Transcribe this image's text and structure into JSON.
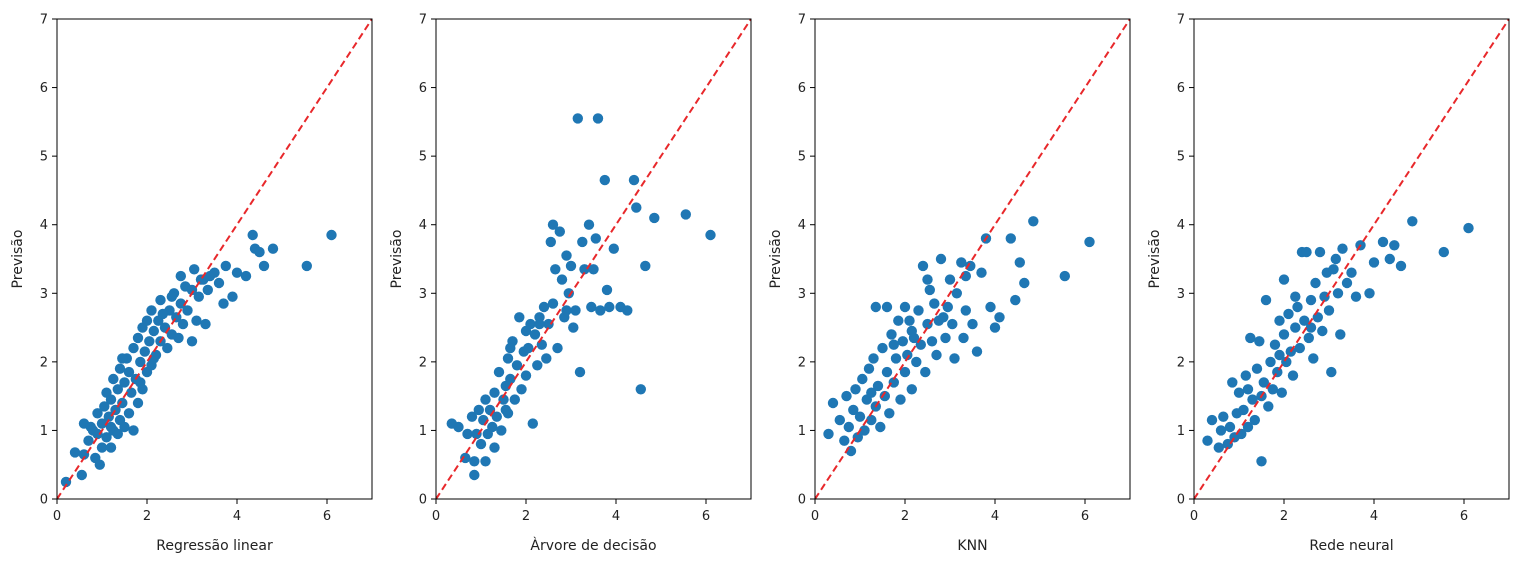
{
  "chart_data": [
    {
      "type": "scatter",
      "xlabel": "Regressão linear",
      "ylabel": "Previsão",
      "xlim": [
        0,
        7
      ],
      "ylim": [
        0,
        7
      ],
      "xticks": [
        0,
        2,
        4,
        6
      ],
      "yticks": [
        0,
        1,
        2,
        3,
        4,
        5,
        6,
        7
      ],
      "reference_line": {
        "x": [
          0,
          7
        ],
        "y": [
          0,
          7
        ],
        "style": "dashed",
        "color": "#e8282b"
      },
      "point_color": "#1f77b4",
      "points": [
        [
          0.2,
          0.25
        ],
        [
          0.4,
          0.68
        ],
        [
          0.55,
          0.35
        ],
        [
          0.6,
          0.65
        ],
        [
          0.6,
          1.1
        ],
        [
          0.7,
          0.85
        ],
        [
          0.75,
          1.05
        ],
        [
          0.85,
          0.6
        ],
        [
          0.9,
          0.95
        ],
        [
          0.9,
          1.25
        ],
        [
          0.95,
          0.5
        ],
        [
          1.0,
          0.75
        ],
        [
          1.0,
          1.1
        ],
        [
          1.05,
          1.35
        ],
        [
          1.1,
          0.9
        ],
        [
          1.1,
          1.55
        ],
        [
          1.15,
          1.2
        ],
        [
          1.2,
          0.75
        ],
        [
          1.2,
          1.45
        ],
        [
          1.25,
          1.0
        ],
        [
          1.25,
          1.75
        ],
        [
          1.3,
          1.3
        ],
        [
          1.35,
          0.95
        ],
        [
          1.35,
          1.6
        ],
        [
          1.4,
          1.15
        ],
        [
          1.4,
          1.9
        ],
        [
          1.45,
          1.4
        ],
        [
          1.5,
          1.05
        ],
        [
          1.5,
          1.7
        ],
        [
          1.55,
          2.05
        ],
        [
          1.6,
          1.25
        ],
        [
          1.6,
          1.85
        ],
        [
          1.65,
          1.55
        ],
        [
          1.7,
          2.2
        ],
        [
          1.7,
          1.0
        ],
        [
          1.75,
          1.75
        ],
        [
          1.8,
          1.4
        ],
        [
          1.8,
          2.35
        ],
        [
          1.85,
          2.0
        ],
        [
          1.9,
          1.6
        ],
        [
          1.9,
          2.5
        ],
        [
          1.95,
          2.15
        ],
        [
          2.0,
          1.85
        ],
        [
          2.0,
          2.6
        ],
        [
          2.05,
          2.3
        ],
        [
          2.1,
          1.95
        ],
        [
          2.1,
          2.75
        ],
        [
          2.15,
          2.45
        ],
        [
          2.2,
          2.1
        ],
        [
          2.25,
          2.6
        ],
        [
          2.3,
          2.3
        ],
        [
          2.3,
          2.9
        ],
        [
          2.4,
          2.5
        ],
        [
          2.45,
          2.2
        ],
        [
          2.5,
          2.75
        ],
        [
          2.55,
          2.4
        ],
        [
          2.6,
          3.0
        ],
        [
          2.65,
          2.65
        ],
        [
          2.7,
          2.35
        ],
        [
          2.75,
          2.85
        ],
        [
          2.8,
          2.55
        ],
        [
          2.85,
          3.1
        ],
        [
          2.9,
          2.75
        ],
        [
          3.0,
          2.3
        ],
        [
          3.0,
          3.05
        ],
        [
          3.05,
          3.35
        ],
        [
          3.1,
          2.6
        ],
        [
          3.15,
          2.95
        ],
        [
          3.2,
          3.2
        ],
        [
          3.3,
          2.55
        ],
        [
          3.35,
          3.05
        ],
        [
          3.4,
          3.25
        ],
        [
          3.5,
          3.3
        ],
        [
          3.6,
          3.15
        ],
        [
          3.7,
          2.85
        ],
        [
          3.75,
          3.4
        ],
        [
          3.9,
          2.95
        ],
        [
          4.0,
          3.3
        ],
        [
          4.2,
          3.25
        ],
        [
          4.35,
          3.85
        ],
        [
          4.4,
          3.65
        ],
        [
          4.5,
          3.6
        ],
        [
          4.6,
          3.4
        ],
        [
          4.8,
          3.65
        ],
        [
          5.55,
          3.4
        ],
        [
          6.1,
          3.85
        ],
        [
          2.55,
          2.95
        ],
        [
          1.45,
          2.05
        ],
        [
          2.35,
          2.7
        ],
        [
          1.85,
          1.7
        ],
        [
          0.8,
          1.0
        ],
        [
          1.2,
          1.05
        ],
        [
          2.15,
          2.05
        ],
        [
          2.75,
          3.25
        ],
        [
          3.25,
          3.2
        ]
      ]
    },
    {
      "type": "scatter",
      "xlabel": "Àrvore de decisão",
      "ylabel": "Previsão",
      "xlim": [
        0,
        7
      ],
      "ylim": [
        0,
        7
      ],
      "xticks": [
        0,
        2,
        4,
        6
      ],
      "yticks": [
        0,
        1,
        2,
        3,
        4,
        5,
        6,
        7
      ],
      "reference_line": {
        "x": [
          0,
          7
        ],
        "y": [
          0,
          7
        ],
        "style": "dashed",
        "color": "#e8282b"
      },
      "point_color": "#1f77b4",
      "points": [
        [
          0.35,
          1.1
        ],
        [
          0.5,
          1.05
        ],
        [
          0.65,
          0.6
        ],
        [
          0.7,
          0.95
        ],
        [
          0.8,
          1.2
        ],
        [
          0.85,
          0.55
        ],
        [
          0.85,
          0.35
        ],
        [
          0.9,
          0.95
        ],
        [
          0.95,
          1.3
        ],
        [
          1.0,
          0.8
        ],
        [
          1.05,
          1.15
        ],
        [
          1.1,
          1.45
        ],
        [
          1.1,
          0.55
        ],
        [
          1.15,
          0.95
        ],
        [
          1.2,
          1.3
        ],
        [
          1.25,
          1.05
        ],
        [
          1.3,
          1.55
        ],
        [
          1.3,
          0.75
        ],
        [
          1.35,
          1.2
        ],
        [
          1.4,
          1.85
        ],
        [
          1.45,
          1.0
        ],
        [
          1.5,
          1.45
        ],
        [
          1.55,
          1.65
        ],
        [
          1.6,
          2.05
        ],
        [
          1.6,
          1.25
        ],
        [
          1.65,
          1.75
        ],
        [
          1.7,
          2.3
        ],
        [
          1.75,
          1.45
        ],
        [
          1.8,
          1.95
        ],
        [
          1.85,
          2.65
        ],
        [
          1.9,
          1.6
        ],
        [
          1.95,
          2.15
        ],
        [
          2.0,
          2.45
        ],
        [
          2.0,
          1.8
        ],
        [
          2.05,
          2.2
        ],
        [
          2.1,
          2.55
        ],
        [
          2.15,
          1.1
        ],
        [
          2.2,
          2.4
        ],
        [
          2.25,
          1.95
        ],
        [
          2.3,
          2.65
        ],
        [
          2.35,
          2.25
        ],
        [
          2.4,
          2.8
        ],
        [
          2.45,
          2.05
        ],
        [
          2.5,
          2.55
        ],
        [
          2.55,
          3.75
        ],
        [
          2.6,
          4.0
        ],
        [
          2.6,
          2.85
        ],
        [
          2.65,
          3.35
        ],
        [
          2.7,
          2.2
        ],
        [
          2.75,
          3.9
        ],
        [
          2.8,
          3.2
        ],
        [
          2.85,
          2.65
        ],
        [
          2.9,
          3.55
        ],
        [
          2.95,
          3.0
        ],
        [
          3.0,
          3.4
        ],
        [
          3.05,
          2.5
        ],
        [
          3.1,
          2.75
        ],
        [
          3.15,
          5.55
        ],
        [
          3.2,
          1.85
        ],
        [
          3.25,
          3.75
        ],
        [
          3.3,
          3.35
        ],
        [
          3.4,
          4.0
        ],
        [
          3.45,
          2.8
        ],
        [
          3.5,
          3.35
        ],
        [
          3.55,
          3.8
        ],
        [
          3.6,
          5.55
        ],
        [
          3.65,
          2.75
        ],
        [
          3.75,
          4.65
        ],
        [
          3.8,
          3.05
        ],
        [
          3.85,
          2.8
        ],
        [
          3.95,
          3.65
        ],
        [
          4.1,
          2.8
        ],
        [
          4.25,
          2.75
        ],
        [
          4.4,
          4.65
        ],
        [
          4.45,
          4.25
        ],
        [
          4.55,
          1.6
        ],
        [
          4.65,
          3.4
        ],
        [
          4.85,
          4.1
        ],
        [
          5.55,
          4.15
        ],
        [
          6.1,
          3.85
        ],
        [
          1.65,
          2.2
        ],
        [
          2.3,
          2.55
        ],
        [
          2.9,
          2.75
        ],
        [
          1.55,
          1.3
        ]
      ]
    },
    {
      "type": "scatter",
      "xlabel": "KNN",
      "ylabel": "Previsão",
      "xlim": [
        0,
        7
      ],
      "ylim": [
        0,
        7
      ],
      "xticks": [
        0,
        2,
        4,
        6
      ],
      "yticks": [
        0,
        1,
        2,
        3,
        4,
        5,
        6,
        7
      ],
      "reference_line": {
        "x": [
          0,
          7
        ],
        "y": [
          0,
          7
        ],
        "style": "dashed",
        "color": "#e8282b"
      },
      "point_color": "#1f77b4",
      "points": [
        [
          0.3,
          0.95
        ],
        [
          0.4,
          1.4
        ],
        [
          0.55,
          1.15
        ],
        [
          0.65,
          0.85
        ],
        [
          0.7,
          1.5
        ],
        [
          0.75,
          1.05
        ],
        [
          0.8,
          0.7
        ],
        [
          0.85,
          1.3
        ],
        [
          0.9,
          1.6
        ],
        [
          0.95,
          0.9
        ],
        [
          1.0,
          1.2
        ],
        [
          1.05,
          1.75
        ],
        [
          1.1,
          1.0
        ],
        [
          1.15,
          1.45
        ],
        [
          1.2,
          1.9
        ],
        [
          1.25,
          1.15
        ],
        [
          1.3,
          2.05
        ],
        [
          1.35,
          1.35
        ],
        [
          1.35,
          2.8
        ],
        [
          1.4,
          1.65
        ],
        [
          1.45,
          1.05
        ],
        [
          1.5,
          2.2
        ],
        [
          1.55,
          1.5
        ],
        [
          1.6,
          2.8
        ],
        [
          1.6,
          1.85
        ],
        [
          1.65,
          1.25
        ],
        [
          1.7,
          2.4
        ],
        [
          1.75,
          1.7
        ],
        [
          1.8,
          2.05
        ],
        [
          1.85,
          2.6
        ],
        [
          1.9,
          1.45
        ],
        [
          1.95,
          2.3
        ],
        [
          2.0,
          2.8
        ],
        [
          2.0,
          1.85
        ],
        [
          2.05,
          2.1
        ],
        [
          2.1,
          2.6
        ],
        [
          2.15,
          1.6
        ],
        [
          2.2,
          2.35
        ],
        [
          2.25,
          2.0
        ],
        [
          2.3,
          2.75
        ],
        [
          2.35,
          2.25
        ],
        [
          2.4,
          3.4
        ],
        [
          2.45,
          1.85
        ],
        [
          2.5,
          2.55
        ],
        [
          2.55,
          3.05
        ],
        [
          2.6,
          2.3
        ],
        [
          2.65,
          2.85
        ],
        [
          2.7,
          2.1
        ],
        [
          2.75,
          2.6
        ],
        [
          2.8,
          3.5
        ],
        [
          2.9,
          2.35
        ],
        [
          2.95,
          2.8
        ],
        [
          3.0,
          3.2
        ],
        [
          3.05,
          2.55
        ],
        [
          3.1,
          2.05
        ],
        [
          3.15,
          3.0
        ],
        [
          3.25,
          3.45
        ],
        [
          3.3,
          2.35
        ],
        [
          3.35,
          2.75
        ],
        [
          3.45,
          3.4
        ],
        [
          3.5,
          2.55
        ],
        [
          3.6,
          2.15
        ],
        [
          3.7,
          3.3
        ],
        [
          3.8,
          3.8
        ],
        [
          3.9,
          2.8
        ],
        [
          4.0,
          2.5
        ],
        [
          4.1,
          2.65
        ],
        [
          4.35,
          3.8
        ],
        [
          4.45,
          2.9
        ],
        [
          4.55,
          3.45
        ],
        [
          4.65,
          3.15
        ],
        [
          4.85,
          4.05
        ],
        [
          5.55,
          3.25
        ],
        [
          6.1,
          3.75
        ],
        [
          1.25,
          1.55
        ],
        [
          2.15,
          2.45
        ],
        [
          2.85,
          2.65
        ],
        [
          1.75,
          2.25
        ],
        [
          3.35,
          3.25
        ],
        [
          2.5,
          3.2
        ]
      ]
    },
    {
      "type": "scatter",
      "xlabel": "Rede neural",
      "ylabel": "Previsão",
      "xlim": [
        0,
        7
      ],
      "ylim": [
        0,
        7
      ],
      "xticks": [
        0,
        2,
        4,
        6
      ],
      "yticks": [
        0,
        1,
        2,
        3,
        4,
        5,
        6,
        7
      ],
      "reference_line": {
        "x": [
          0,
          7
        ],
        "y": [
          0,
          7
        ],
        "style": "dashed",
        "color": "#e8282b"
      },
      "point_color": "#1f77b4",
      "points": [
        [
          0.3,
          0.85
        ],
        [
          0.4,
          1.15
        ],
        [
          0.55,
          0.75
        ],
        [
          0.6,
          1.0
        ],
        [
          0.65,
          1.2
        ],
        [
          0.75,
          0.8
        ],
        [
          0.8,
          1.05
        ],
        [
          0.85,
          1.7
        ],
        [
          0.9,
          0.9
        ],
        [
          0.95,
          1.25
        ],
        [
          1.0,
          1.55
        ],
        [
          1.05,
          0.95
        ],
        [
          1.1,
          1.3
        ],
        [
          1.15,
          1.8
        ],
        [
          1.2,
          1.05
        ],
        [
          1.25,
          2.35
        ],
        [
          1.3,
          1.45
        ],
        [
          1.35,
          1.15
        ],
        [
          1.4,
          1.9
        ],
        [
          1.45,
          2.3
        ],
        [
          1.5,
          0.55
        ],
        [
          1.5,
          1.5
        ],
        [
          1.55,
          1.7
        ],
        [
          1.6,
          2.9
        ],
        [
          1.65,
          1.35
        ],
        [
          1.7,
          2.0
        ],
        [
          1.75,
          1.6
        ],
        [
          1.8,
          2.25
        ],
        [
          1.85,
          1.85
        ],
        [
          1.9,
          2.6
        ],
        [
          1.95,
          1.55
        ],
        [
          2.0,
          2.4
        ],
        [
          2.0,
          3.2
        ],
        [
          2.05,
          2.0
        ],
        [
          2.1,
          2.7
        ],
        [
          2.15,
          2.15
        ],
        [
          2.2,
          1.8
        ],
        [
          2.25,
          2.5
        ],
        [
          2.3,
          2.8
        ],
        [
          2.35,
          2.2
        ],
        [
          2.4,
          3.6
        ],
        [
          2.45,
          2.6
        ],
        [
          2.5,
          3.6
        ],
        [
          2.55,
          2.35
        ],
        [
          2.6,
          2.9
        ],
        [
          2.65,
          2.05
        ],
        [
          2.7,
          3.15
        ],
        [
          2.75,
          2.65
        ],
        [
          2.8,
          3.6
        ],
        [
          2.85,
          2.45
        ],
        [
          2.9,
          2.95
        ],
        [
          2.95,
          3.3
        ],
        [
          3.0,
          2.75
        ],
        [
          3.05,
          1.85
        ],
        [
          3.1,
          3.35
        ],
        [
          3.15,
          3.5
        ],
        [
          3.25,
          2.4
        ],
        [
          3.3,
          3.65
        ],
        [
          3.4,
          3.15
        ],
        [
          3.5,
          3.3
        ],
        [
          3.6,
          2.95
        ],
        [
          3.7,
          3.7
        ],
        [
          3.9,
          3.0
        ],
        [
          4.0,
          3.45
        ],
        [
          4.2,
          3.75
        ],
        [
          4.35,
          3.5
        ],
        [
          4.45,
          3.7
        ],
        [
          4.6,
          3.4
        ],
        [
          4.85,
          4.05
        ],
        [
          5.55,
          3.6
        ],
        [
          6.1,
          3.95
        ],
        [
          1.2,
          1.6
        ],
        [
          2.25,
          2.95
        ],
        [
          2.6,
          2.5
        ],
        [
          3.2,
          3.0
        ],
        [
          1.9,
          2.1
        ]
      ]
    }
  ]
}
